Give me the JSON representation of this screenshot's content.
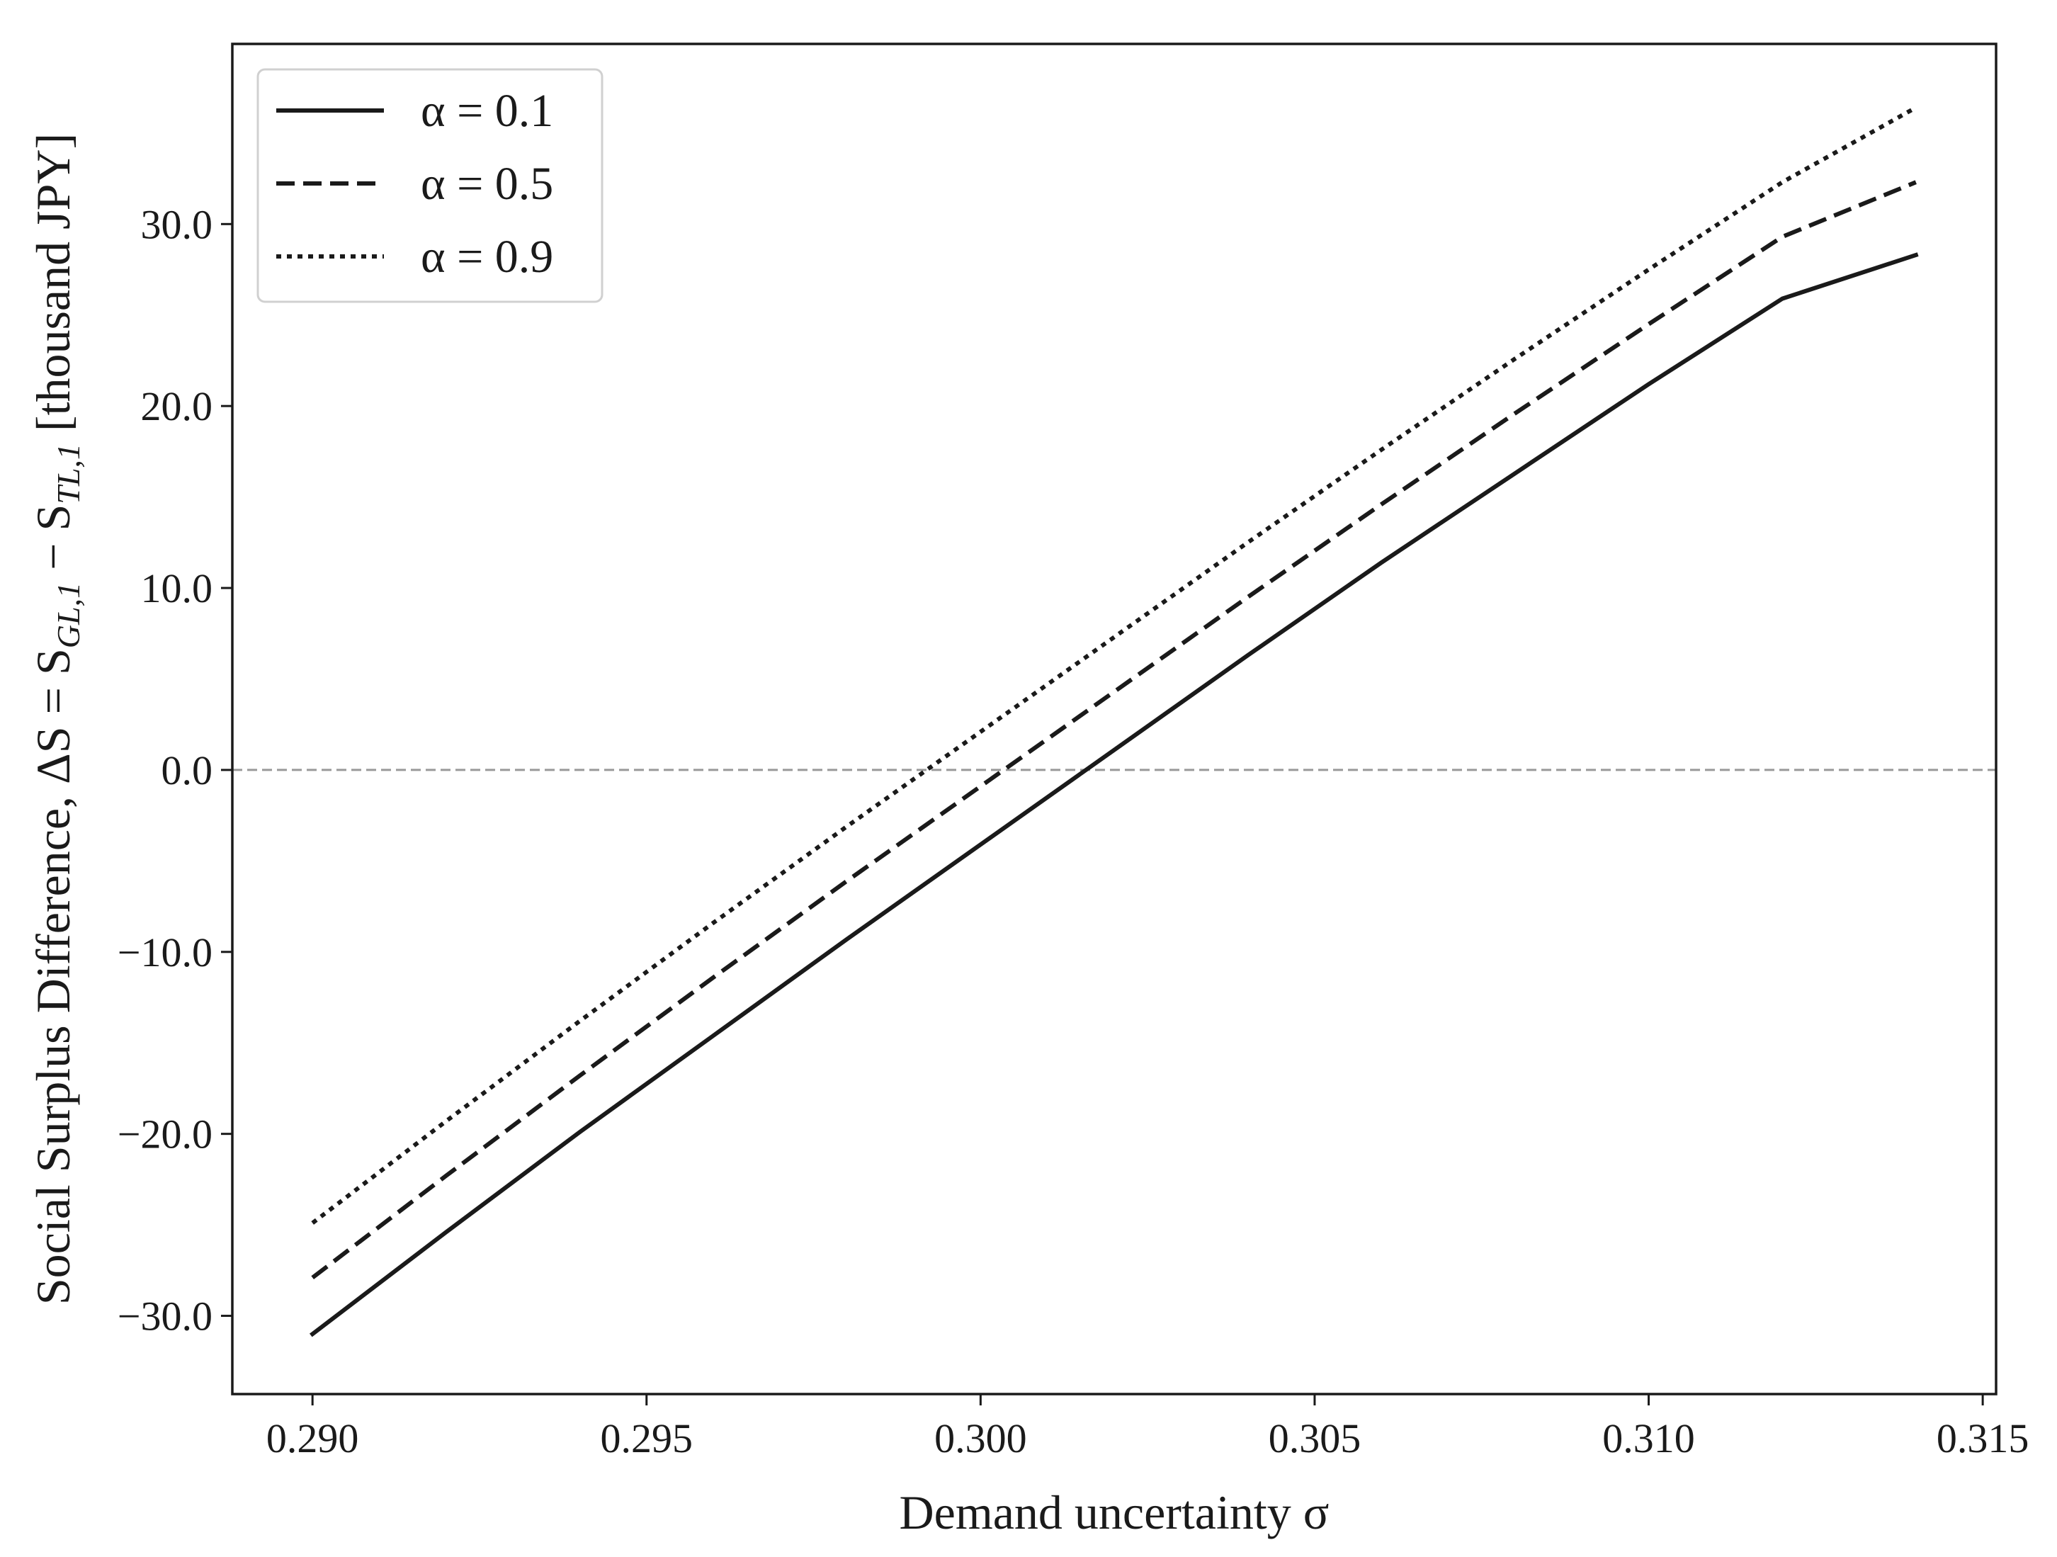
{
  "chart_data": {
    "type": "line",
    "title": "",
    "xlabel": "Demand uncertainty σ",
    "ylabel": {
      "prefix": "Social Surplus Difference, ΔS = S",
      "sub1": "GL,1",
      "mid": " − S",
      "sub2": "TL,1",
      "suffix": " [thousand JPY]"
    },
    "xlim": [
      0.2888,
      0.3152
    ],
    "ylim": [
      -34.3,
      39.9
    ],
    "xticks": [
      0.29,
      0.295,
      0.3,
      0.305,
      0.31,
      0.315
    ],
    "xtick_labels": [
      "0.290",
      "0.295",
      "0.300",
      "0.305",
      "0.310",
      "0.315"
    ],
    "yticks": [
      -30,
      -20,
      -10,
      0,
      10,
      20,
      30
    ],
    "ytick_labels": [
      "−30.0",
      "−20.0",
      "−10.0",
      "0.0",
      "10.0",
      "20.0",
      "30.0"
    ],
    "grid": false,
    "legend_position": "top-left",
    "reference_line": {
      "y": 0,
      "style": "dashed",
      "color": "#999999"
    },
    "x": [
      0.29,
      0.292,
      0.294,
      0.296,
      0.298,
      0.3,
      0.302,
      0.304,
      0.306,
      0.308,
      0.31,
      0.312,
      0.314
    ],
    "series": [
      {
        "name": "α = 0.1",
        "style": "solid",
        "color": "#1a1a1a",
        "values": [
          -31.0,
          -25.4,
          -19.9,
          -14.6,
          -9.3,
          -4.1,
          1.1,
          6.3,
          11.4,
          16.3,
          21.2,
          25.9,
          28.3
        ]
      },
      {
        "name": "α = 0.5",
        "style": "dashed",
        "color": "#1a1a1a",
        "values": [
          -27.9,
          -22.3,
          -16.8,
          -11.4,
          -6.1,
          -0.9,
          4.3,
          9.5,
          14.6,
          19.6,
          24.5,
          29.3,
          32.3
        ]
      },
      {
        "name": "α = 0.9",
        "style": "dotted",
        "color": "#1a1a1a",
        "values": [
          -24.9,
          -19.3,
          -13.8,
          -8.4,
          -3.1,
          2.1,
          7.3,
          12.5,
          17.6,
          22.6,
          27.5,
          32.3,
          36.4
        ]
      }
    ]
  }
}
